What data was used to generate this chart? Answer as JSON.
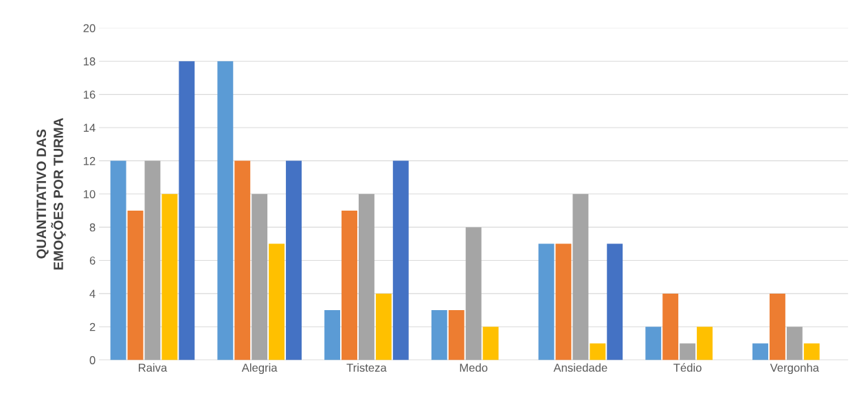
{
  "chart_data": {
    "type": "bar",
    "ylabel": "QUANTITATIVO DAS\nEMOÇÕES POR TURMA",
    "categories": [
      "Raiva",
      "Alegria",
      "Tristeza",
      "Medo",
      "Ansiedade",
      "Tédio",
      "Vergonha"
    ],
    "series": [
      {
        "color": "#5b9bd5",
        "values": [
          12,
          18,
          3,
          3,
          7,
          2,
          1
        ]
      },
      {
        "color": "#ed7d31",
        "values": [
          9,
          12,
          9,
          3,
          7,
          4,
          4
        ]
      },
      {
        "color": "#a5a5a5",
        "values": [
          12,
          10,
          10,
          8,
          10,
          1,
          2
        ]
      },
      {
        "color": "#ffc000",
        "values": [
          10,
          7,
          4,
          2,
          1,
          2,
          1
        ]
      },
      {
        "color": "#4472c4",
        "values": [
          18,
          12,
          12,
          0,
          7,
          0,
          0
        ]
      }
    ],
    "ylim": [
      0,
      20
    ],
    "yticks": [
      0,
      2,
      4,
      6,
      8,
      10,
      12,
      14,
      16,
      18,
      20
    ],
    "grid": "y"
  }
}
